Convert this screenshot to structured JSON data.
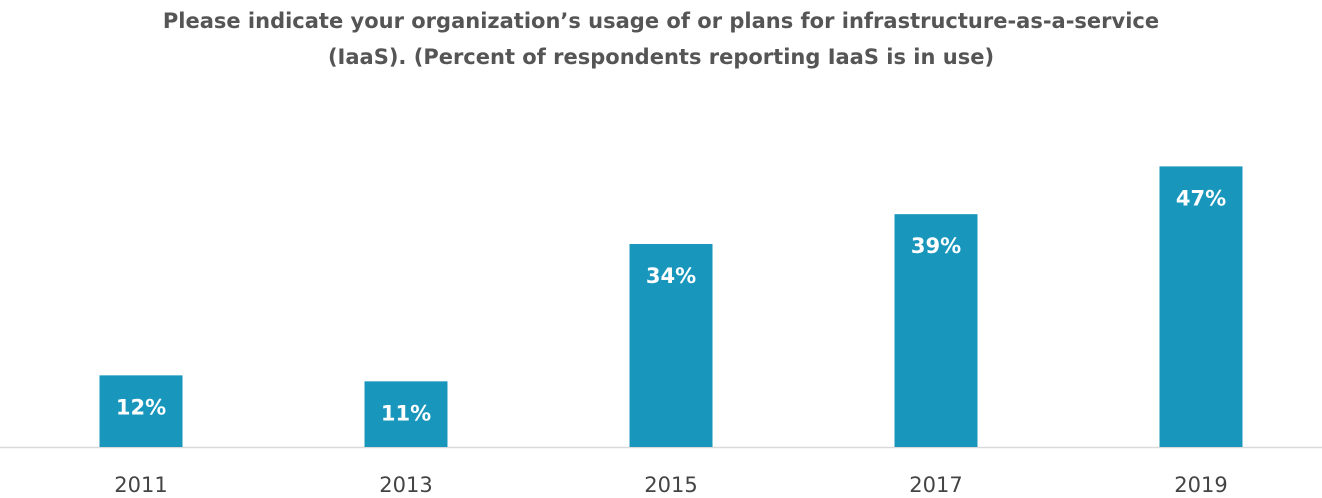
{
  "chart_data": {
    "type": "bar",
    "title": [
      "Please indicate your organization’s usage of or plans for infrastructure-as-a-service",
      "(IaaS). (Percent of respondents reporting IaaS is in use)"
    ],
    "categories": [
      "2011",
      "2013",
      "2015",
      "2017",
      "2019"
    ],
    "values": [
      12,
      11,
      34,
      39,
      47
    ],
    "value_labels": [
      "12%",
      "11%",
      "34%",
      "39%",
      "47%"
    ],
    "color": "#1896bc"
  }
}
